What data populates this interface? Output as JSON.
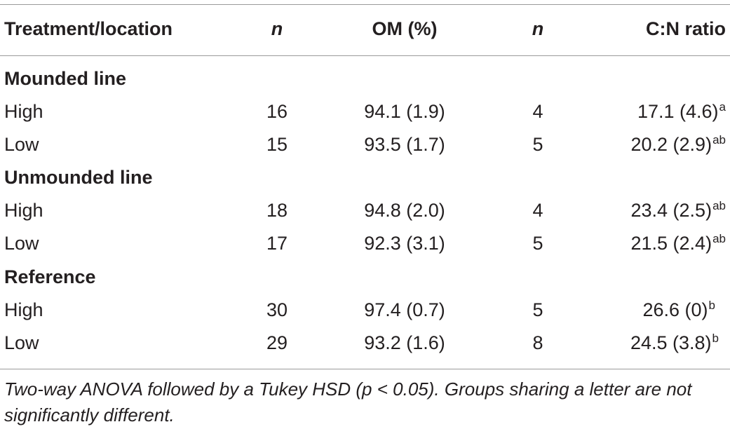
{
  "header": {
    "treatment_location": "Treatment/location",
    "n1": "n",
    "om": "OM (%)",
    "n2": "n",
    "cn_ratio": "C:N ratio"
  },
  "groups": [
    {
      "title": "Mounded line",
      "rows": [
        {
          "label": "High",
          "n1": "16",
          "om": "94.1 (1.9)",
          "n2": "4",
          "cn": "17.1 (4.6)",
          "cn_sup": "a"
        },
        {
          "label": "Low",
          "n1": "15",
          "om": "93.5 (1.7)",
          "n2": "5",
          "cn": "20.2 (2.9)",
          "cn_sup": "ab"
        }
      ]
    },
    {
      "title": "Unmounded line",
      "rows": [
        {
          "label": "High",
          "n1": "18",
          "om": "94.8 (2.0)",
          "n2": "4",
          "cn": "23.4 (2.5)",
          "cn_sup": "ab"
        },
        {
          "label": "Low",
          "n1": "17",
          "om": "92.3 (3.1)",
          "n2": "5",
          "cn": "21.5 (2.4)",
          "cn_sup": "ab"
        }
      ]
    },
    {
      "title": "Reference",
      "rows": [
        {
          "label": "High",
          "n1": "30",
          "om": "97.4 (0.7)",
          "n2": "5",
          "cn": "26.6 (0)",
          "cn_sup": "b"
        },
        {
          "label": "Low",
          "n1": "29",
          "om": "93.2 (1.6)",
          "n2": "8",
          "cn": "24.5 (3.8)",
          "cn_sup": "b"
        }
      ]
    }
  ],
  "footnote": "Two-way ANOVA followed by a Tukey HSD (p < 0.05). Groups sharing a letter are not significantly different."
}
